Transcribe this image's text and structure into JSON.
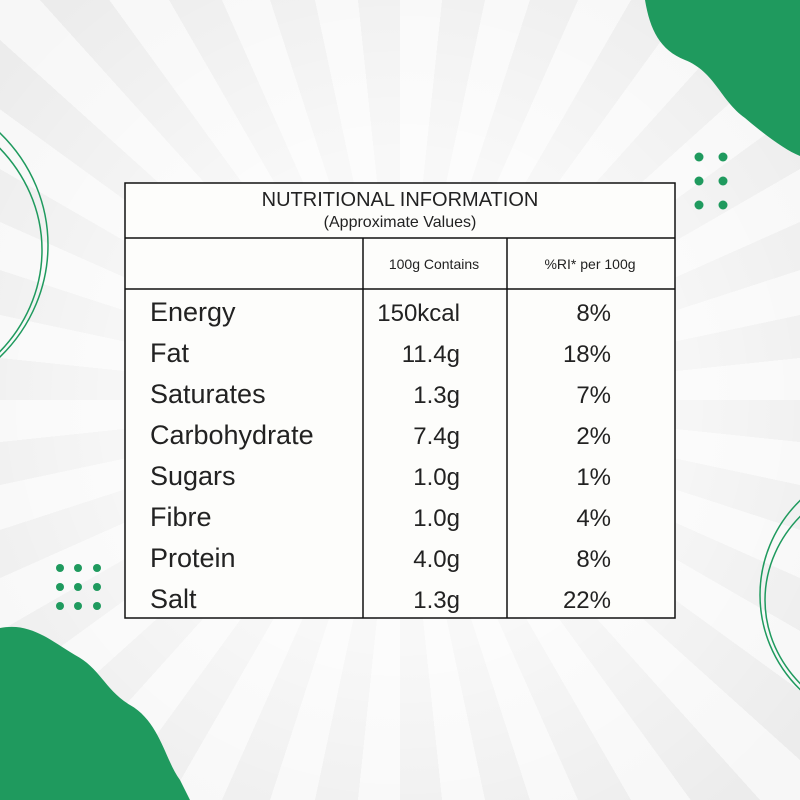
{
  "table": {
    "title": "NUTRITIONAL INFORMATION",
    "subtitle": "(Approximate Values)",
    "columns": [
      "100g Contains",
      "%RI* per 100g"
    ],
    "rows": [
      [
        "Energy",
        "150kcal",
        "8%"
      ],
      [
        "Fat",
        "11.4g",
        "18%"
      ],
      [
        "Saturates",
        "1.3g",
        "7%"
      ],
      [
        "Carbohydrate",
        "7.4g",
        "2%"
      ],
      [
        "Sugars",
        "1.0g",
        "1%"
      ],
      [
        "Fibre",
        "1.0g",
        "4%"
      ],
      [
        "Protein",
        "4.0g",
        "8%"
      ],
      [
        "Salt",
        "1.3g",
        "22%"
      ]
    ]
  }
}
